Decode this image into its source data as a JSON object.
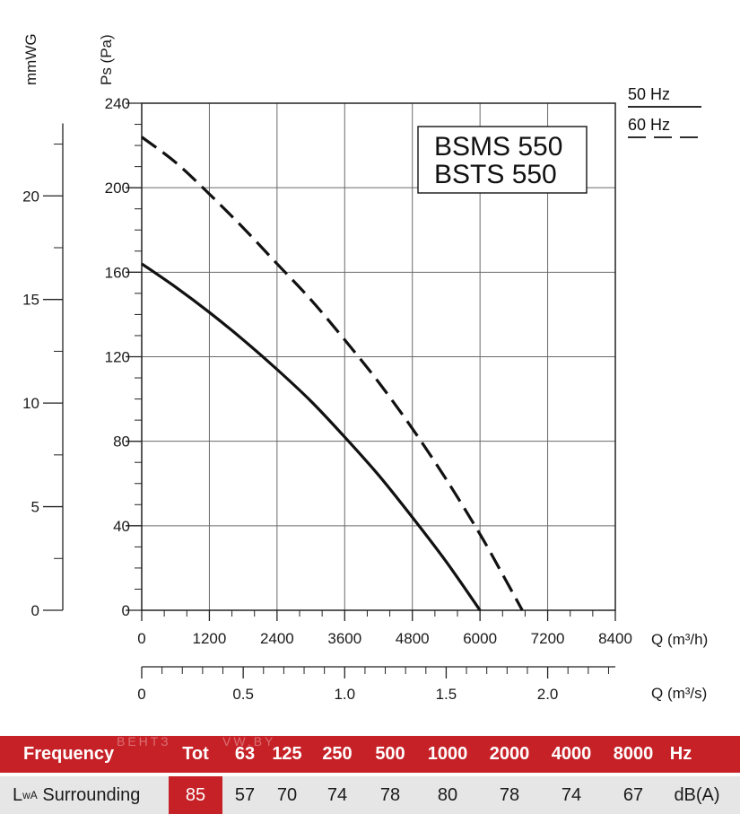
{
  "chart_data": {
    "type": "line",
    "title": "",
    "models": [
      "BSMS 550",
      "BSTS 550"
    ],
    "xlabel": "Q (m³/h)",
    "ylabel": "Ps (Pa)",
    "xlim": [
      0,
      8400
    ],
    "ylim": [
      0,
      240
    ],
    "x_ticks": [
      0,
      1200,
      2400,
      3600,
      4800,
      6000,
      7200,
      8400
    ],
    "x_tick_labels": [
      "0",
      "1200",
      "2400",
      "3600",
      "4800",
      "6000",
      "7200",
      "8400"
    ],
    "y_ticks": [
      0,
      40,
      80,
      120,
      160,
      200,
      240
    ],
    "y_tick_labels": [
      "0",
      "40",
      "80",
      "120",
      "160",
      "200",
      "240"
    ],
    "secondary_x": {
      "label": "Q (m³/s)",
      "ticks": [
        0,
        0.5,
        1.0,
        1.5,
        2.0
      ],
      "tick_labels": [
        "0",
        "0.5",
        "1.0",
        "1.5",
        "2.0"
      ]
    },
    "secondary_y": {
      "label": "mmWG",
      "ticks": [
        0,
        5,
        10,
        15,
        20
      ],
      "tick_labels": [
        "0",
        "5",
        "10",
        "15",
        "20"
      ]
    },
    "grid": true,
    "legend_position": "top-right",
    "series": [
      {
        "name": "50 Hz",
        "style": "solid",
        "x": [
          0,
          600,
          1200,
          1800,
          2400,
          3000,
          3600,
          4200,
          4800,
          5400,
          6000
        ],
        "y": [
          164,
          153,
          141,
          128,
          114,
          99,
          82,
          64,
          44,
          23,
          0
        ]
      },
      {
        "name": "60 Hz",
        "style": "dashed",
        "x": [
          0,
          600,
          1200,
          1800,
          2400,
          3000,
          3600,
          4200,
          4800,
          5400,
          6000,
          6400,
          6750
        ],
        "y": [
          224,
          212,
          197,
          181,
          164,
          147,
          128,
          108,
          86,
          62,
          36,
          17,
          0
        ]
      }
    ]
  },
  "sound_table": {
    "header_label": "Frequency",
    "total_label": "Tot",
    "frequencies": [
      "63",
      "125",
      "250",
      "500",
      "1000",
      "2000",
      "4000",
      "8000"
    ],
    "unit": "Hz",
    "row_label_main": "L",
    "row_label_sub": "wA",
    "row_label_rest": "Surrounding",
    "total_value": "85",
    "values": [
      "57",
      "70",
      "74",
      "78",
      "80",
      "78",
      "74",
      "67"
    ],
    "value_unit": "dB(A)",
    "watermark": "ВЕНТЗАПАД    VW.BY"
  },
  "colors": {
    "accent": "#c62127",
    "row_bg": "#e6e6e6",
    "grid": "#666666",
    "curve": "#111111"
  }
}
